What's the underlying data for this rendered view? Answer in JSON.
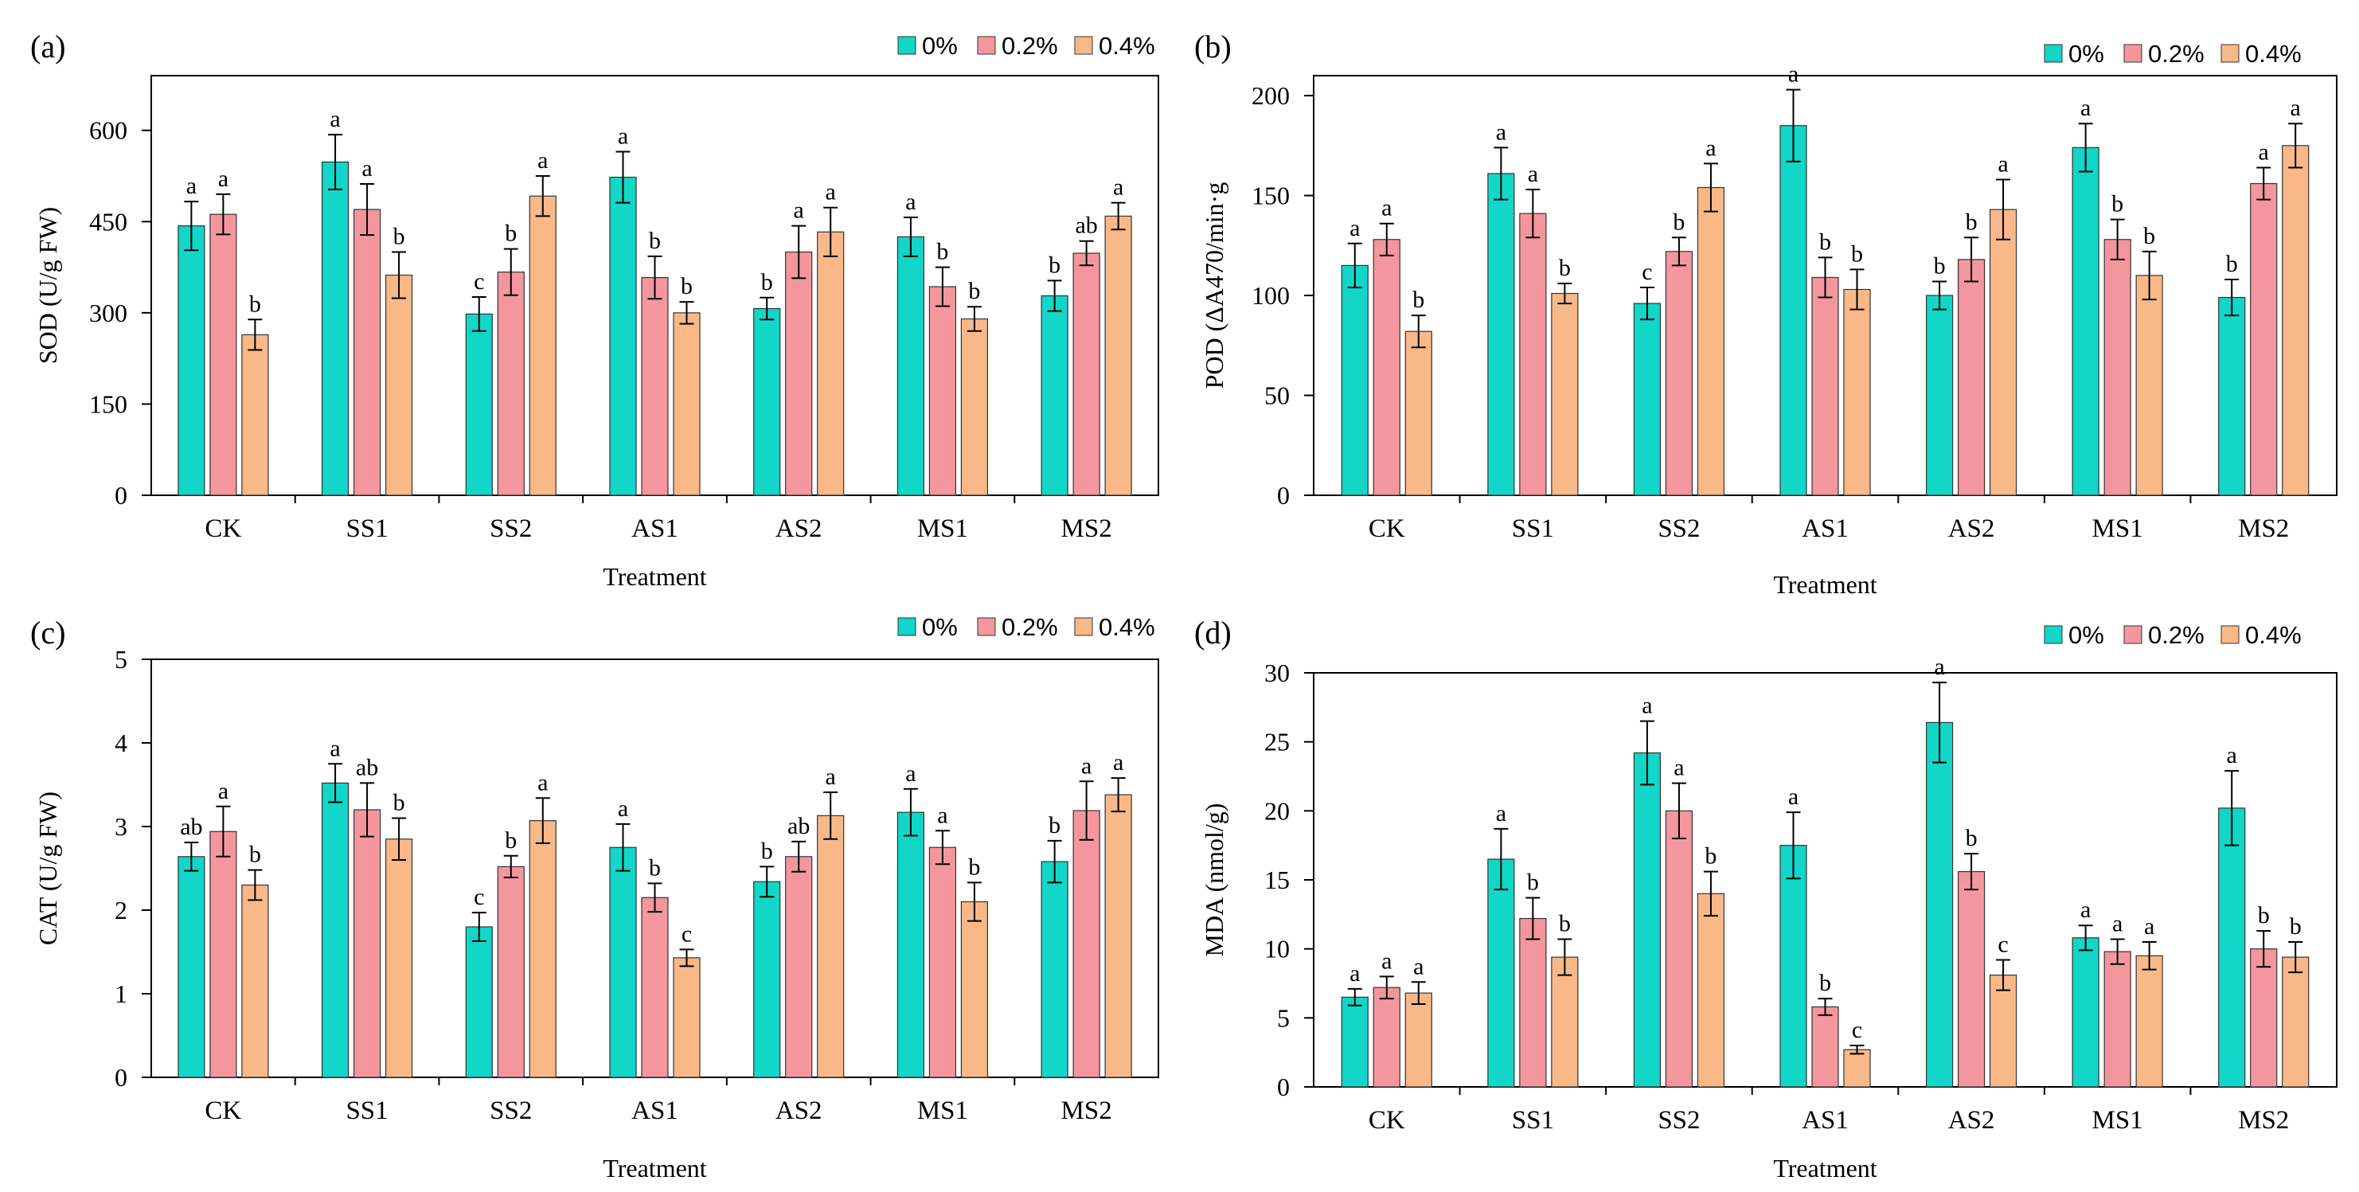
{
  "colors": {
    "0%": "#12D6C7",
    "0.2%": "#F4969D",
    "0.4%": "#F8B888",
    "axis": "#000000"
  },
  "chart_data": [
    {
      "type": "bar",
      "panel": "(a)",
      "xlabel": "Treatment",
      "ylabel": "SOD (U/g FW)",
      "ylim": [
        0,
        690
      ],
      "yticks": [
        0,
        150,
        300,
        450,
        600
      ],
      "categories": [
        "CK",
        "SS1",
        "SS2",
        "AS1",
        "AS2",
        "MS1",
        "MS2"
      ],
      "legend": [
        "0%",
        "0.2%",
        "0.4%"
      ],
      "series": [
        {
          "name": "0%",
          "values": [
            443,
            548,
            298,
            523,
            307,
            425,
            328
          ],
          "errors": [
            40,
            45,
            28,
            42,
            18,
            32,
            25
          ],
          "labels": [
            "a",
            "a",
            "c",
            "a",
            "b",
            "a",
            "b"
          ]
        },
        {
          "name": "0.2%",
          "values": [
            462,
            470,
            367,
            358,
            400,
            343,
            398
          ],
          "errors": [
            33,
            42,
            38,
            35,
            43,
            32,
            20
          ],
          "labels": [
            "a",
            "a",
            "b",
            "b",
            "a",
            "b",
            "ab"
          ]
        },
        {
          "name": "0.4%",
          "values": [
            264,
            362,
            492,
            300,
            433,
            290,
            459
          ],
          "errors": [
            25,
            38,
            33,
            18,
            40,
            20,
            22
          ],
          "labels": [
            "b",
            "b",
            "a",
            "b",
            "a",
            "b",
            "a"
          ]
        }
      ]
    },
    {
      "type": "bar",
      "panel": "(b)",
      "xlabel": "Treatment",
      "ylabel": "POD (ΔA470/min·g",
      "ylim": [
        0,
        210
      ],
      "yticks": [
        0,
        50,
        100,
        150,
        200
      ],
      "categories": [
        "CK",
        "SS1",
        "SS2",
        "AS1",
        "AS2",
        "MS1",
        "MS2"
      ],
      "legend": [
        "0%",
        "0.2%",
        "0.4%"
      ],
      "series": [
        {
          "name": "0%",
          "values": [
            115,
            161,
            96,
            185,
            100,
            174,
            99
          ],
          "errors": [
            11,
            13,
            8,
            18,
            7,
            12,
            9
          ],
          "labels": [
            "a",
            "a",
            "c",
            "a",
            "b",
            "a",
            "b"
          ]
        },
        {
          "name": "0.2%",
          "values": [
            128,
            141,
            122,
            109,
            118,
            128,
            156
          ],
          "errors": [
            8,
            12,
            7,
            10,
            11,
            10,
            8
          ],
          "labels": [
            "a",
            "a",
            "b",
            "b",
            "b",
            "b",
            "a"
          ]
        },
        {
          "name": "0.4%",
          "values": [
            82,
            101,
            154,
            103,
            143,
            110,
            175
          ],
          "errors": [
            8,
            5,
            12,
            10,
            15,
            12,
            11
          ],
          "labels": [
            "b",
            "b",
            "a",
            "b",
            "a",
            "b",
            "a"
          ]
        }
      ]
    },
    {
      "type": "bar",
      "panel": "(c)",
      "xlabel": "Treatment",
      "ylabel": "CAT (U/g FW)",
      "ylim": [
        0,
        5
      ],
      "yticks": [
        0,
        1,
        2,
        3,
        4,
        5
      ],
      "categories": [
        "CK",
        "SS1",
        "SS2",
        "AS1",
        "AS2",
        "MS1",
        "MS2"
      ],
      "legend": [
        "0%",
        "0.2%",
        "0.4%"
      ],
      "series": [
        {
          "name": "0%",
          "values": [
            2.64,
            3.52,
            1.8,
            2.75,
            2.34,
            3.17,
            2.58
          ],
          "errors": [
            0.17,
            0.23,
            0.17,
            0.28,
            0.18,
            0.28,
            0.25
          ],
          "labels": [
            "ab",
            "a",
            "c",
            "a",
            "b",
            "a",
            "b"
          ]
        },
        {
          "name": "0.2%",
          "values": [
            2.94,
            3.2,
            2.52,
            2.15,
            2.64,
            2.75,
            3.19
          ],
          "errors": [
            0.3,
            0.32,
            0.13,
            0.17,
            0.18,
            0.2,
            0.35
          ],
          "labels": [
            "a",
            "ab",
            "b",
            "b",
            "ab",
            "a",
            "a"
          ]
        },
        {
          "name": "0.4%",
          "values": [
            2.3,
            2.85,
            3.07,
            1.43,
            3.13,
            2.1,
            3.38
          ],
          "errors": [
            0.18,
            0.25,
            0.27,
            0.1,
            0.28,
            0.23,
            0.2
          ],
          "labels": [
            "b",
            "b",
            "a",
            "c",
            "a",
            "b",
            "a"
          ]
        }
      ]
    },
    {
      "type": "bar",
      "panel": "(d)",
      "xlabel": "Treatment",
      "ylabel": "MDA (nmol/g)",
      "ylim": [
        0,
        30
      ],
      "yticks": [
        0,
        5,
        10,
        15,
        20,
        25,
        30
      ],
      "categories": [
        "CK",
        "SS1",
        "SS2",
        "AS1",
        "AS2",
        "MS1",
        "MS2"
      ],
      "legend": [
        "0%",
        "0.2%",
        "0.4%"
      ],
      "series": [
        {
          "name": "0%",
          "values": [
            6.5,
            16.5,
            24.2,
            17.5,
            26.4,
            10.8,
            20.2
          ],
          "errors": [
            0.6,
            2.2,
            2.3,
            2.4,
            2.9,
            0.9,
            2.7
          ],
          "labels": [
            "a",
            "a",
            "a",
            "a",
            "a",
            "a",
            "a"
          ]
        },
        {
          "name": "0.2%",
          "values": [
            7.2,
            12.2,
            20.0,
            5.8,
            15.6,
            9.8,
            10.0
          ],
          "errors": [
            0.8,
            1.5,
            2.0,
            0.6,
            1.3,
            0.9,
            1.3
          ],
          "labels": [
            "a",
            "b",
            "a",
            "b",
            "b",
            "a",
            "b"
          ]
        },
        {
          "name": "0.4%",
          "values": [
            6.8,
            9.4,
            14.0,
            2.7,
            8.1,
            9.5,
            9.4
          ],
          "errors": [
            0.8,
            1.3,
            1.6,
            0.3,
            1.1,
            1.0,
            1.1
          ],
          "labels": [
            "a",
            "b",
            "b",
            "c",
            "c",
            "a",
            "b"
          ]
        }
      ]
    }
  ]
}
